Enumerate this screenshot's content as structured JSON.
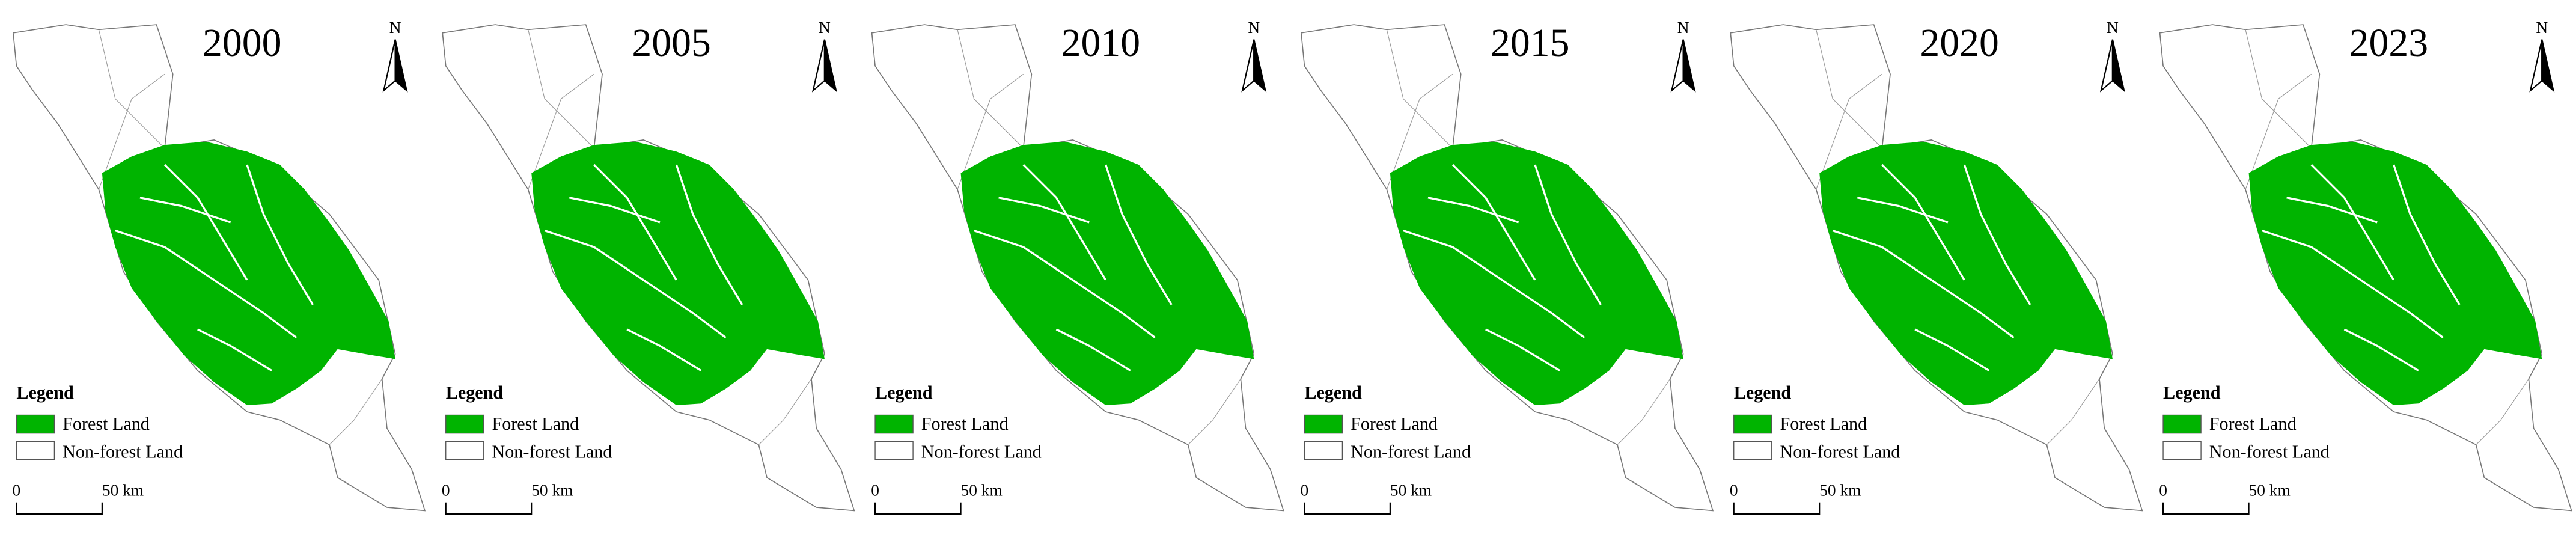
{
  "panels": [
    {
      "year": "2000"
    },
    {
      "year": "2005"
    },
    {
      "year": "2010"
    },
    {
      "year": "2015"
    },
    {
      "year": "2020"
    },
    {
      "year": "2023"
    }
  ],
  "north": "N",
  "legend": {
    "title": "Legend",
    "items": [
      "Forest Land",
      "Non-forest Land"
    ]
  },
  "scale_bar": {
    "start": "0",
    "end": "50 km"
  }
}
